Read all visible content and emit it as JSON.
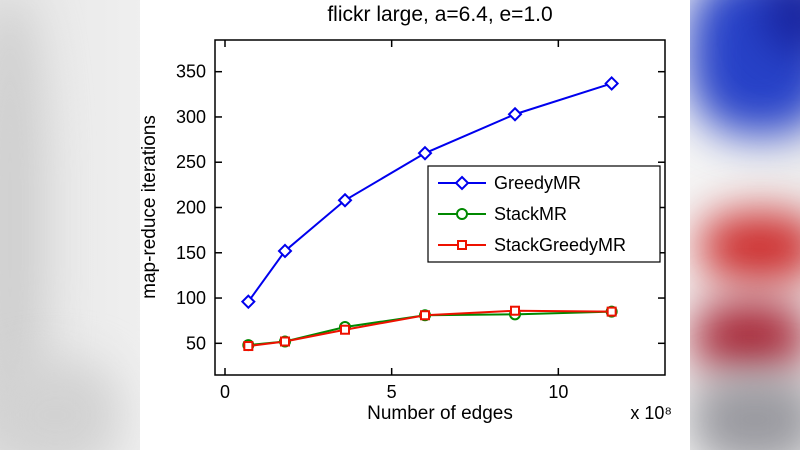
{
  "background": {
    "base_color": "#f0f0f0",
    "panel_color": "#ffffff",
    "blur_blue": "#2742c8",
    "blur_navy": "#16209a",
    "blur_red": "#cc2a2a",
    "blur_dark_red": "#a82838",
    "blur_gray": "#9a9aa0"
  },
  "chart_data": {
    "type": "line",
    "title": "flickr large, a=6.4, e=1.0",
    "xlabel": "Number of edges",
    "ylabel": "map-reduce iterations",
    "x_multiplier_label": "x 10⁸",
    "x": [
      0.7,
      1.8,
      3.6,
      6.0,
      8.7,
      11.6
    ],
    "series": [
      {
        "name": "GreedyMR",
        "color": "#0000ee",
        "marker": "diamond",
        "values": [
          96,
          152,
          208,
          260,
          303,
          337
        ]
      },
      {
        "name": "StackMR",
        "color": "#008800",
        "marker": "circle",
        "values": [
          48,
          52,
          68,
          81,
          82,
          85
        ]
      },
      {
        "name": "StackGreedyMR",
        "color": "#ee1100",
        "marker": "square",
        "values": [
          47,
          52,
          65,
          81,
          86,
          85
        ]
      }
    ],
    "xlim": [
      -0.3,
      13.2
    ],
    "ylim": [
      15,
      385
    ],
    "xticks": [
      0,
      5,
      10
    ],
    "yticks": [
      50,
      100,
      150,
      200,
      250,
      300,
      350
    ],
    "grid": false,
    "legend_position": "center-right",
    "line_width": 2,
    "axis_color": "#000000"
  }
}
